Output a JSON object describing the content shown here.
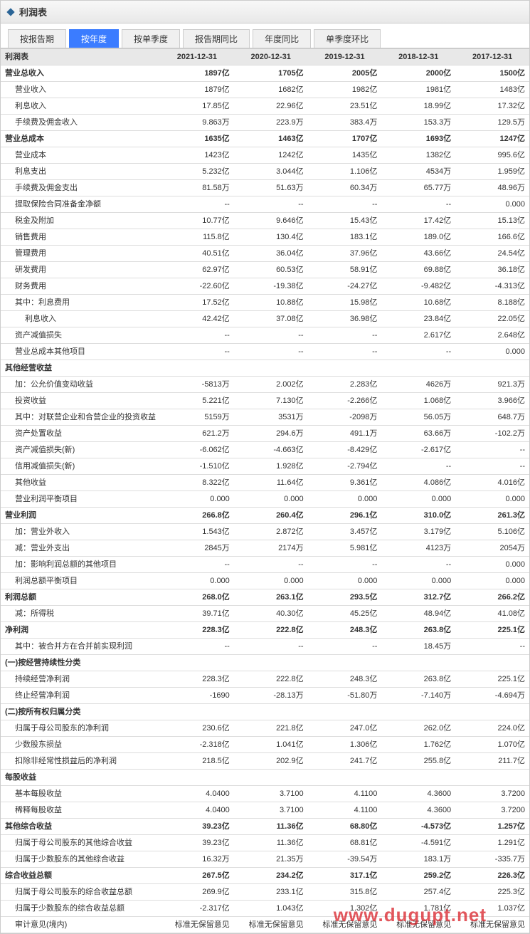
{
  "header": {
    "title": "利润表"
  },
  "tabs": [
    {
      "label": "按报告期",
      "active": false
    },
    {
      "label": "按年度",
      "active": true
    },
    {
      "label": "按单季度",
      "active": false
    },
    {
      "label": "报告期同比",
      "active": false
    },
    {
      "label": "年度同比",
      "active": false
    },
    {
      "label": "单季度环比",
      "active": false
    }
  ],
  "table": {
    "header_label": "利润表",
    "columns": [
      "2021-12-31",
      "2020-12-31",
      "2019-12-31",
      "2018-12-31",
      "2017-12-31"
    ],
    "rows": [
      {
        "label": "营业总收入",
        "bold": true,
        "indent": 0,
        "vals": [
          "1897亿",
          "1705亿",
          "2005亿",
          "2000亿",
          "1500亿"
        ]
      },
      {
        "label": "营业收入",
        "indent": 1,
        "vals": [
          "1879亿",
          "1682亿",
          "1982亿",
          "1981亿",
          "1483亿"
        ]
      },
      {
        "label": "利息收入",
        "indent": 1,
        "vals": [
          "17.85亿",
          "22.96亿",
          "23.51亿",
          "18.99亿",
          "17.32亿"
        ]
      },
      {
        "label": "手续费及佣金收入",
        "indent": 1,
        "vals": [
          "9.863万",
          "223.9万",
          "383.4万",
          "153.3万",
          "129.5万"
        ]
      },
      {
        "label": "营业总成本",
        "bold": true,
        "indent": 0,
        "vals": [
          "1635亿",
          "1463亿",
          "1707亿",
          "1693亿",
          "1247亿"
        ]
      },
      {
        "label": "营业成本",
        "indent": 1,
        "vals": [
          "1423亿",
          "1242亿",
          "1435亿",
          "1382亿",
          "995.6亿"
        ]
      },
      {
        "label": "利息支出",
        "indent": 1,
        "vals": [
          "5.232亿",
          "3.044亿",
          "1.106亿",
          "4534万",
          "1.959亿"
        ]
      },
      {
        "label": "手续费及佣金支出",
        "indent": 1,
        "vals": [
          "81.58万",
          "51.63万",
          "60.34万",
          "65.77万",
          "48.96万"
        ]
      },
      {
        "label": "提取保险合同准备金净额",
        "indent": 1,
        "vals": [
          "--",
          "--",
          "--",
          "--",
          "0.000"
        ]
      },
      {
        "label": "税金及附加",
        "indent": 1,
        "vals": [
          "10.77亿",
          "9.646亿",
          "15.43亿",
          "17.42亿",
          "15.13亿"
        ]
      },
      {
        "label": "销售费用",
        "indent": 1,
        "vals": [
          "115.8亿",
          "130.4亿",
          "183.1亿",
          "189.0亿",
          "166.6亿"
        ]
      },
      {
        "label": "管理费用",
        "indent": 1,
        "vals": [
          "40.51亿",
          "36.04亿",
          "37.96亿",
          "43.66亿",
          "24.54亿"
        ]
      },
      {
        "label": "研发费用",
        "indent": 1,
        "vals": [
          "62.97亿",
          "60.53亿",
          "58.91亿",
          "69.88亿",
          "36.18亿"
        ]
      },
      {
        "label": "财务费用",
        "indent": 1,
        "vals": [
          "-22.60亿",
          "-19.38亿",
          "-24.27亿",
          "-9.482亿",
          "-4.313亿"
        ]
      },
      {
        "label": "其中：利息费用",
        "indent": 1,
        "vals": [
          "17.52亿",
          "10.88亿",
          "15.98亿",
          "10.68亿",
          "8.188亿"
        ]
      },
      {
        "label": "利息收入",
        "indent": 2,
        "vals": [
          "42.42亿",
          "37.08亿",
          "36.98亿",
          "23.84亿",
          "22.05亿"
        ]
      },
      {
        "label": "资产减值损失",
        "indent": 1,
        "vals": [
          "--",
          "--",
          "--",
          "2.617亿",
          "2.648亿"
        ]
      },
      {
        "label": "营业总成本其他项目",
        "indent": 1,
        "vals": [
          "--",
          "--",
          "--",
          "--",
          "0.000"
        ]
      },
      {
        "label": "其他经营收益",
        "bold": true,
        "indent": 0,
        "vals": [
          "",
          "",
          "",
          "",
          ""
        ]
      },
      {
        "label": "加：公允价值变动收益",
        "indent": 1,
        "vals": [
          "-5813万",
          "2.002亿",
          "2.283亿",
          "4626万",
          "921.3万"
        ]
      },
      {
        "label": "投资收益",
        "indent": 1,
        "vals": [
          "5.221亿",
          "7.130亿",
          "-2.266亿",
          "1.068亿",
          "3.966亿"
        ]
      },
      {
        "label": "其中：对联营企业和合营企业的投资收益",
        "indent": 1,
        "vals": [
          "5159万",
          "3531万",
          "-2098万",
          "56.05万",
          "648.7万"
        ]
      },
      {
        "label": "资产处置收益",
        "indent": 1,
        "vals": [
          "621.2万",
          "294.6万",
          "491.1万",
          "63.66万",
          "-102.2万"
        ]
      },
      {
        "label": "资产减值损失(新)",
        "indent": 1,
        "vals": [
          "-6.062亿",
          "-4.663亿",
          "-8.429亿",
          "-2.617亿",
          "--"
        ]
      },
      {
        "label": "信用减值损失(新)",
        "indent": 1,
        "vals": [
          "-1.510亿",
          "1.928亿",
          "-2.794亿",
          "--",
          "--"
        ]
      },
      {
        "label": "其他收益",
        "indent": 1,
        "vals": [
          "8.322亿",
          "11.64亿",
          "9.361亿",
          "4.086亿",
          "4.016亿"
        ]
      },
      {
        "label": "营业利润平衡项目",
        "indent": 1,
        "vals": [
          "0.000",
          "0.000",
          "0.000",
          "0.000",
          "0.000"
        ]
      },
      {
        "label": "营业利润",
        "bold": true,
        "indent": 0,
        "vals": [
          "266.8亿",
          "260.4亿",
          "296.1亿",
          "310.0亿",
          "261.3亿"
        ]
      },
      {
        "label": "加：营业外收入",
        "indent": 1,
        "vals": [
          "1.543亿",
          "2.872亿",
          "3.457亿",
          "3.179亿",
          "5.106亿"
        ]
      },
      {
        "label": "减：营业外支出",
        "indent": 1,
        "vals": [
          "2845万",
          "2174万",
          "5.981亿",
          "4123万",
          "2054万"
        ]
      },
      {
        "label": "加：影响利润总额的其他项目",
        "indent": 1,
        "vals": [
          "--",
          "--",
          "--",
          "--",
          "0.000"
        ]
      },
      {
        "label": "利润总额平衡项目",
        "indent": 1,
        "vals": [
          "0.000",
          "0.000",
          "0.000",
          "0.000",
          "0.000"
        ]
      },
      {
        "label": "利润总额",
        "bold": true,
        "indent": 0,
        "vals": [
          "268.0亿",
          "263.1亿",
          "293.5亿",
          "312.7亿",
          "266.2亿"
        ]
      },
      {
        "label": "减：所得税",
        "indent": 1,
        "vals": [
          "39.71亿",
          "40.30亿",
          "45.25亿",
          "48.94亿",
          "41.08亿"
        ]
      },
      {
        "label": "净利润",
        "bold": true,
        "indent": 0,
        "vals": [
          "228.3亿",
          "222.8亿",
          "248.3亿",
          "263.8亿",
          "225.1亿"
        ]
      },
      {
        "label": "其中：被合并方在合并前实现利润",
        "indent": 1,
        "vals": [
          "--",
          "--",
          "--",
          "18.45万",
          "--"
        ]
      },
      {
        "label": "(一)按经营持续性分类",
        "bold": true,
        "indent": 0,
        "vals": [
          "",
          "",
          "",
          "",
          ""
        ]
      },
      {
        "label": "持续经营净利润",
        "indent": 1,
        "vals": [
          "228.3亿",
          "222.8亿",
          "248.3亿",
          "263.8亿",
          "225.1亿"
        ]
      },
      {
        "label": "终止经营净利润",
        "indent": 1,
        "vals": [
          "-1690",
          "-28.13万",
          "-51.80万",
          "-7.140万",
          "-4.694万"
        ]
      },
      {
        "label": "(二)按所有权归属分类",
        "bold": true,
        "indent": 0,
        "vals": [
          "",
          "",
          "",
          "",
          ""
        ]
      },
      {
        "label": "归属于母公司股东的净利润",
        "indent": 1,
        "vals": [
          "230.6亿",
          "221.8亿",
          "247.0亿",
          "262.0亿",
          "224.0亿"
        ]
      },
      {
        "label": "少数股东损益",
        "indent": 1,
        "vals": [
          "-2.318亿",
          "1.041亿",
          "1.306亿",
          "1.762亿",
          "1.070亿"
        ]
      },
      {
        "label": "扣除非经常性损益后的净利润",
        "indent": 1,
        "vals": [
          "218.5亿",
          "202.9亿",
          "241.7亿",
          "255.8亿",
          "211.7亿"
        ]
      },
      {
        "label": "每股收益",
        "bold": true,
        "indent": 0,
        "vals": [
          "",
          "",
          "",
          "",
          ""
        ]
      },
      {
        "label": "基本每股收益",
        "indent": 1,
        "vals": [
          "4.0400",
          "3.7100",
          "4.1100",
          "4.3600",
          "3.7200"
        ]
      },
      {
        "label": "稀释每股收益",
        "indent": 1,
        "vals": [
          "4.0400",
          "3.7100",
          "4.1100",
          "4.3600",
          "3.7200"
        ]
      },
      {
        "label": "其他综合收益",
        "bold": true,
        "indent": 0,
        "vals": [
          "39.23亿",
          "11.36亿",
          "68.80亿",
          "-4.573亿",
          "1.257亿"
        ]
      },
      {
        "label": "归属于母公司股东的其他综合收益",
        "indent": 1,
        "vals": [
          "39.23亿",
          "11.36亿",
          "68.81亿",
          "-4.591亿",
          "1.291亿"
        ]
      },
      {
        "label": "归属于少数股东的其他综合收益",
        "indent": 1,
        "vals": [
          "16.32万",
          "21.35万",
          "-39.54万",
          "183.1万",
          "-335.7万"
        ]
      },
      {
        "label": "综合收益总额",
        "bold": true,
        "indent": 0,
        "vals": [
          "267.5亿",
          "234.2亿",
          "317.1亿",
          "259.2亿",
          "226.3亿"
        ]
      },
      {
        "label": "归属于母公司股东的综合收益总额",
        "indent": 1,
        "vals": [
          "269.9亿",
          "233.1亿",
          "315.8亿",
          "257.4亿",
          "225.3亿"
        ]
      },
      {
        "label": "归属于少数股东的综合收益总额",
        "indent": 1,
        "vals": [
          "-2.317亿",
          "1.043亿",
          "1.302亿",
          "1.781亿",
          "1.037亿"
        ]
      },
      {
        "label": "审计意见(境内)",
        "indent": 1,
        "vals": [
          "标准无保留意见",
          "标准无保留意见",
          "标准无保留意见",
          "标准无保留意见",
          "标准无保留意见"
        ]
      }
    ]
  },
  "watermark": "www.dugupt.net"
}
